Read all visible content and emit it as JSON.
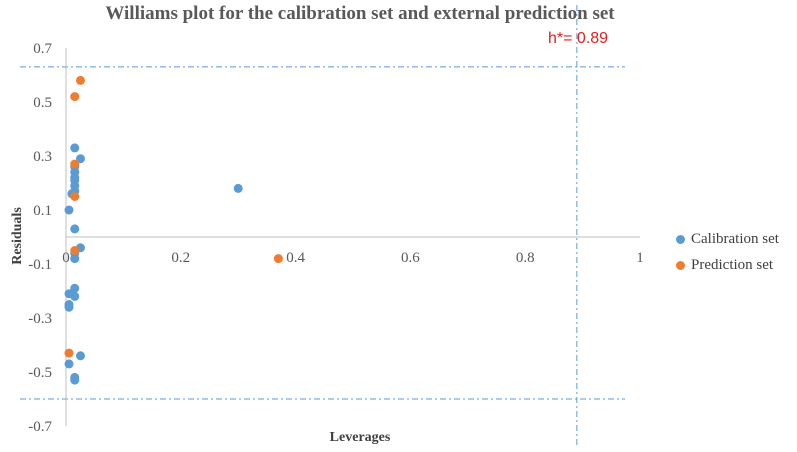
{
  "chart_data": {
    "type": "scatter",
    "title": "Williams plot for the calibration set and external prediction set",
    "xlabel": "Leverages",
    "ylabel": "Residuals",
    "xlim": [
      0,
      1
    ],
    "ylim": [
      -0.7,
      0.7
    ],
    "x_ticks": [
      "0",
      "0.2",
      "0.4",
      "0.6",
      "0.8",
      "1"
    ],
    "y_ticks": [
      "0.7",
      "0.5",
      "0.3",
      "0.1",
      "-0.1",
      "-0.3",
      "-0.5",
      "-0.7"
    ],
    "h_star": 0.89,
    "h_star_label": "h*= 0.89",
    "residual_limits": [
      0.63,
      -0.6
    ],
    "legend_position": "right",
    "series": [
      {
        "name": "Calibration set",
        "color": "#5b9bd5",
        "points": [
          [
            0.01,
            0.33
          ],
          [
            0.02,
            0.29
          ],
          [
            0.01,
            0.26
          ],
          [
            0.01,
            0.24
          ],
          [
            0.01,
            0.22
          ],
          [
            0.01,
            0.21
          ],
          [
            0.01,
            0.19
          ],
          [
            0.01,
            0.17
          ],
          [
            0.005,
            0.16
          ],
          [
            0.0,
            0.1
          ],
          [
            0.01,
            0.03
          ],
          [
            0.02,
            -0.04
          ],
          [
            0.01,
            -0.06
          ],
          [
            0.01,
            -0.08
          ],
          [
            0.01,
            -0.19
          ],
          [
            0.0,
            -0.21
          ],
          [
            0.01,
            -0.22
          ],
          [
            0.0,
            -0.25
          ],
          [
            0.0,
            -0.26
          ],
          [
            0.02,
            -0.44
          ],
          [
            0.0,
            -0.47
          ],
          [
            0.01,
            -0.52
          ],
          [
            0.01,
            -0.53
          ],
          [
            0.3,
            0.18
          ]
        ]
      },
      {
        "name": "Prediction set",
        "color": "#ed7d31",
        "points": [
          [
            0.02,
            0.58
          ],
          [
            0.01,
            0.52
          ],
          [
            0.01,
            0.27
          ],
          [
            0.01,
            0.15
          ],
          [
            0.01,
            -0.05
          ],
          [
            0.0,
            -0.43
          ],
          [
            0.37,
            -0.08
          ]
        ]
      }
    ]
  }
}
